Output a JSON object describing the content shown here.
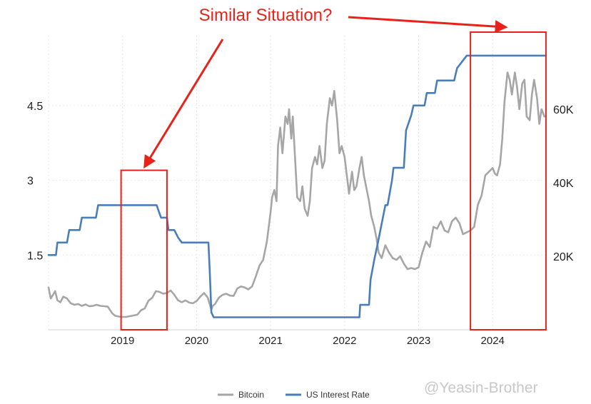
{
  "chart_data": {
    "type": "line",
    "title": "",
    "annotation_text": "Similar Situation?",
    "watermark": "@Yeasin-Brother",
    "x_ticks": [
      "2019",
      "2020",
      "2021",
      "2022",
      "2023",
      "2024"
    ],
    "y_left_ticks": [
      {
        "value": 1.5,
        "label": "1.5"
      },
      {
        "value": 3,
        "label": "3"
      },
      {
        "value": 4.5,
        "label": "4.5"
      }
    ],
    "y_right_ticks": [
      {
        "value": 20000,
        "label": "20K"
      },
      {
        "value": 40000,
        "label": "40K"
      },
      {
        "value": 60000,
        "label": "60K"
      }
    ],
    "y_left_range": [
      0,
      5.9
    ],
    "y_right_range": [
      0,
      80000
    ],
    "x_range": [
      2018.0,
      2024.75
    ],
    "grid": true,
    "legend_position": "bottom",
    "colors": {
      "bitcoin": "#a6a6a6",
      "interest": "#4a7ebb",
      "annotation": "#e8221b"
    },
    "highlight_ranges": [
      {
        "x": [
          2018.98,
          2019.6
        ],
        "y_left": [
          0,
          3.2
        ]
      },
      {
        "x": [
          2023.7,
          2024.72
        ],
        "y_left": [
          0,
          6.0
        ]
      }
    ],
    "series": [
      {
        "name": "Bitcoin",
        "axis": "right",
        "x": [
          2018.0,
          2018.03,
          2018.06,
          2018.09,
          2018.12,
          2018.16,
          2018.2,
          2018.25,
          2018.3,
          2018.35,
          2018.4,
          2018.45,
          2018.5,
          2018.55,
          2018.6,
          2018.65,
          2018.7,
          2018.75,
          2018.8,
          2018.86,
          2018.9,
          2018.95,
          2019.0,
          2019.05,
          2019.1,
          2019.15,
          2019.2,
          2019.25,
          2019.3,
          2019.35,
          2019.4,
          2019.45,
          2019.5,
          2019.55,
          2019.6,
          2019.65,
          2019.7,
          2019.75,
          2019.8,
          2019.85,
          2019.9,
          2019.95,
          2020.0,
          2020.05,
          2020.1,
          2020.15,
          2020.2,
          2020.22,
          2020.25,
          2020.3,
          2020.35,
          2020.4,
          2020.45,
          2020.5,
          2020.55,
          2020.6,
          2020.65,
          2020.7,
          2020.75,
          2020.8,
          2020.85,
          2020.9,
          2020.95,
          2021.0,
          2021.02,
          2021.05,
          2021.08,
          2021.1,
          2021.13,
          2021.16,
          2021.2,
          2021.23,
          2021.25,
          2021.28,
          2021.3,
          2021.33,
          2021.36,
          2021.4,
          2021.43,
          2021.46,
          2021.5,
          2021.53,
          2021.56,
          2021.6,
          2021.63,
          2021.66,
          2021.7,
          2021.73,
          2021.76,
          2021.8,
          2021.83,
          2021.86,
          2021.9,
          2021.93,
          2021.96,
          2022.0,
          2022.03,
          2022.06,
          2022.1,
          2022.13,
          2022.16,
          2022.2,
          2022.23,
          2022.26,
          2022.3,
          2022.33,
          2022.36,
          2022.4,
          2022.43,
          2022.46,
          2022.5,
          2022.55,
          2022.6,
          2022.65,
          2022.7,
          2022.75,
          2022.8,
          2022.85,
          2022.9,
          2022.95,
          2023.0,
          2023.05,
          2023.1,
          2023.15,
          2023.2,
          2023.25,
          2023.3,
          2023.35,
          2023.4,
          2023.45,
          2023.5,
          2023.55,
          2023.6,
          2023.65,
          2023.7,
          2023.75,
          2023.8,
          2023.85,
          2023.9,
          2023.95,
          2024.0,
          2024.03,
          2024.06,
          2024.1,
          2024.13,
          2024.16,
          2024.2,
          2024.23,
          2024.26,
          2024.3,
          2024.33,
          2024.36,
          2024.4,
          2024.43,
          2024.46,
          2024.5,
          2024.53,
          2024.56,
          2024.6,
          2024.63,
          2024.66,
          2024.7
        ],
        "values": [
          11500,
          8500,
          9500,
          10500,
          8000,
          7500,
          9000,
          8500,
          7200,
          6800,
          7000,
          6500,
          6900,
          6400,
          6500,
          6800,
          6500,
          6400,
          6300,
          4500,
          3800,
          3600,
          3500,
          3500,
          3700,
          3900,
          4100,
          5300,
          5800,
          7900,
          8700,
          10500,
          10300,
          9800,
          10000,
          10700,
          9500,
          8000,
          7500,
          8000,
          7400,
          7200,
          7800,
          9000,
          10000,
          8800,
          5500,
          6500,
          7000,
          8700,
          9500,
          9800,
          9300,
          9200,
          11200,
          11800,
          11500,
          11000,
          11800,
          14500,
          17500,
          19000,
          24000,
          32000,
          36000,
          38000,
          35000,
          50000,
          55000,
          48000,
          58000,
          56000,
          60000,
          52000,
          58000,
          47000,
          36000,
          35000,
          39000,
          33000,
          31000,
          35000,
          44000,
          47000,
          45000,
          50000,
          44000,
          46000,
          56000,
          63000,
          61000,
          65000,
          57000,
          48000,
          50000,
          47000,
          42000,
          37000,
          43000,
          38000,
          39000,
          44000,
          47000,
          42000,
          38000,
          35000,
          31000,
          28000,
          25000,
          21000,
          19500,
          23000,
          21000,
          19500,
          19000,
          20000,
          18000,
          16500,
          16800,
          16500,
          17000,
          21000,
          24000,
          22500,
          28000,
          27500,
          29500,
          27000,
          26500,
          29500,
          30500,
          29000,
          26000,
          26500,
          27000,
          28000,
          34000,
          36500,
          42000,
          43000,
          44000,
          42500,
          42000,
          45000,
          52000,
          62000,
          70000,
          68000,
          64000,
          70000,
          66000,
          60000,
          67000,
          68000,
          58000,
          57000,
          64000,
          68000,
          63000,
          56000,
          60000,
          58000
        ]
      },
      {
        "name": "US Interest Rate",
        "axis": "left",
        "x": [
          2018.0,
          2018.1,
          2018.12,
          2018.25,
          2018.28,
          2018.42,
          2018.45,
          2018.64,
          2018.67,
          2018.93,
          2018.96,
          2019.46,
          2019.52,
          2019.6,
          2019.62,
          2019.7,
          2019.75,
          2019.8,
          2019.84,
          2020.16,
          2020.18,
          2020.2,
          2020.23,
          2022.2,
          2022.21,
          2022.33,
          2022.35,
          2022.4,
          2022.45,
          2022.55,
          2022.58,
          2022.64,
          2022.66,
          2022.8,
          2022.83,
          2022.9,
          2022.93,
          2023.08,
          2023.11,
          2023.22,
          2023.25,
          2023.48,
          2023.52,
          2023.65,
          2024.72
        ],
        "values": [
          1.5,
          1.5,
          1.75,
          1.75,
          2.0,
          2.0,
          2.25,
          2.25,
          2.5,
          2.5,
          2.5,
          2.5,
          2.25,
          2.25,
          2.0,
          2.0,
          1.85,
          1.75,
          1.75,
          1.75,
          1.1,
          0.35,
          0.25,
          0.25,
          0.5,
          0.5,
          1.0,
          1.4,
          1.75,
          2.5,
          2.5,
          3.0,
          3.25,
          3.25,
          4.0,
          4.3,
          4.5,
          4.5,
          4.75,
          4.75,
          5.0,
          5.0,
          5.25,
          5.5,
          5.5
        ]
      }
    ]
  }
}
